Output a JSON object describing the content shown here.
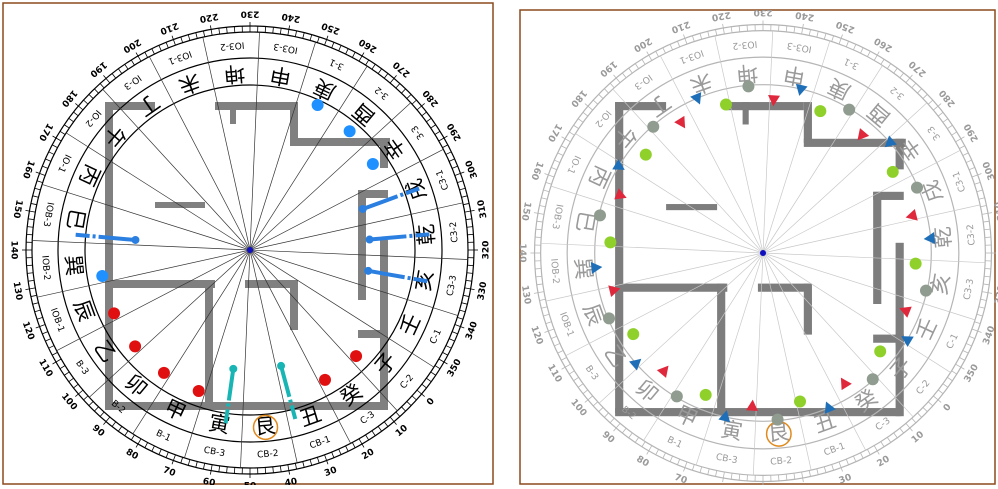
{
  "compass": {
    "mountains": [
      {
        "name": "子",
        "code": "C-2"
      },
      {
        "name": "癸",
        "code": "C-3"
      },
      {
        "name": "丑",
        "code": "CB-1"
      },
      {
        "name": "艮",
        "code": "CB-2"
      },
      {
        "name": "寅",
        "code": "CB-3"
      },
      {
        "name": "甲",
        "code": "B-1"
      },
      {
        "name": "卯",
        "code": "B-2"
      },
      {
        "name": "乙",
        "code": "B-3"
      },
      {
        "name": "辰",
        "code": "IOB-1"
      },
      {
        "name": "巽",
        "code": "IOB-2"
      },
      {
        "name": "巳",
        "code": "IOB-3"
      },
      {
        "name": "丙",
        "code": "IO-1"
      },
      {
        "name": "午",
        "code": "IO-2"
      },
      {
        "name": "丁",
        "code": "IO-3"
      },
      {
        "name": "未",
        "code": "IO3-1"
      },
      {
        "name": "坤",
        "code": "IO3-2"
      },
      {
        "name": "申",
        "code": "IO3-3"
      },
      {
        "name": "庚",
        "code": "3-1"
      },
      {
        "name": "酉",
        "code": "3-2"
      },
      {
        "name": "辛",
        "code": "3-3"
      },
      {
        "name": "戌",
        "code": "C3-1"
      },
      {
        "name": "乾",
        "code": "C3-2"
      },
      {
        "name": "亥",
        "code": "C3-3"
      },
      {
        "name": "壬",
        "code": "C-1"
      }
    ],
    "degrees": [
      0,
      10,
      20,
      30,
      40,
      50,
      60,
      70,
      80,
      90,
      100,
      110,
      120,
      130,
      140,
      150,
      160,
      170,
      180,
      190,
      200,
      210,
      220,
      230,
      240,
      250,
      260,
      270,
      280,
      290,
      300,
      310,
      320,
      330,
      340,
      350
    ]
  }
}
